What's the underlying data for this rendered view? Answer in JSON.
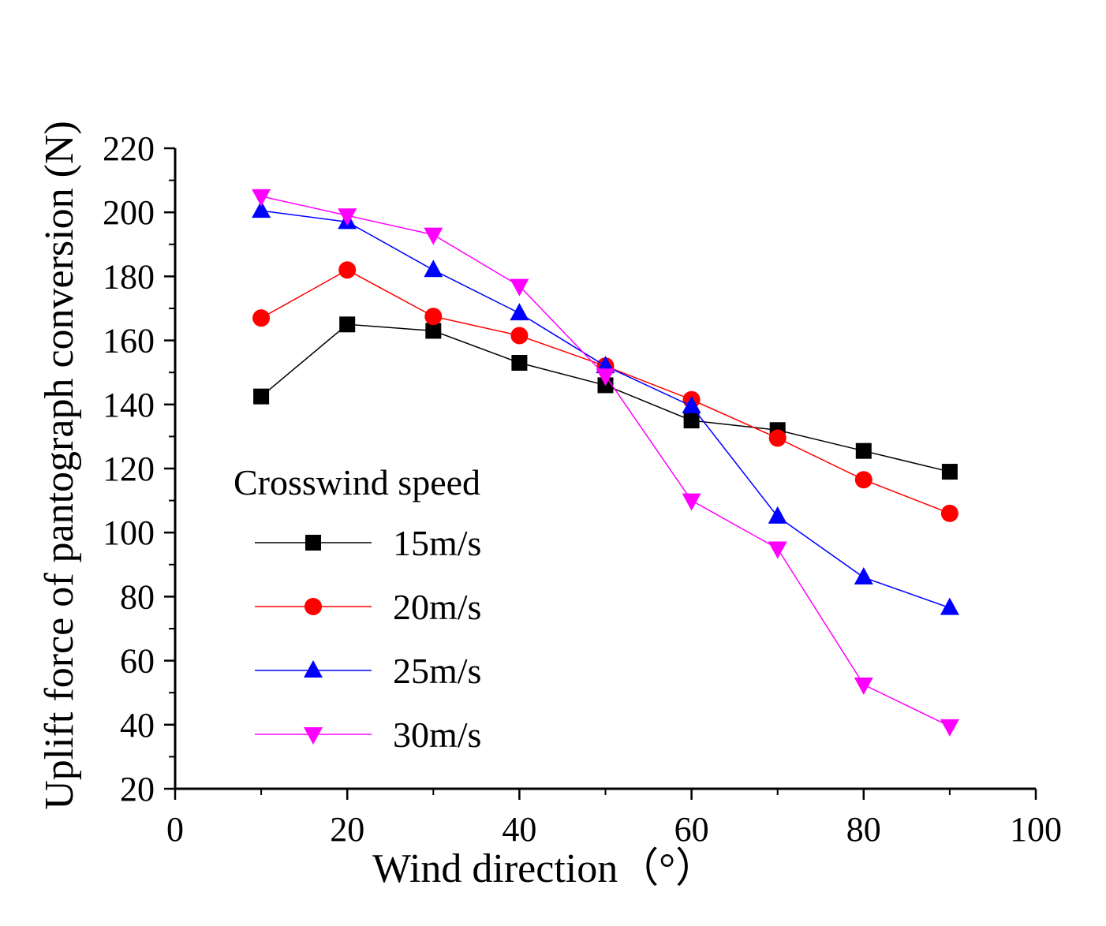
{
  "chart_data": {
    "type": "line",
    "title": "",
    "xlabel": "Wind direction（°）",
    "ylabel": "Uplift force of pantograph conversion (N)",
    "xlim": [
      0,
      100
    ],
    "ylim": [
      20,
      220
    ],
    "xticks": [
      0,
      20,
      40,
      60,
      80,
      100
    ],
    "yticks": [
      20,
      40,
      60,
      80,
      100,
      120,
      140,
      160,
      180,
      200,
      220
    ],
    "x": [
      10,
      20,
      30,
      40,
      50,
      60,
      70,
      80,
      90
    ],
    "legend_title": "Crosswind speed",
    "legend_position": "lower-left",
    "series": [
      {
        "name": "15m/s",
        "color": "#000000",
        "marker": "square",
        "values": [
          142.5,
          165,
          163,
          153,
          146,
          135,
          132,
          125.5,
          119
        ]
      },
      {
        "name": "20m/s",
        "color": "#ff0000",
        "marker": "circle",
        "values": [
          167,
          182,
          167.5,
          161.5,
          152,
          141.5,
          129.5,
          116.5,
          106
        ]
      },
      {
        "name": "25m/s",
        "color": "#0000ff",
        "marker": "triangle-up",
        "values": [
          200.5,
          197,
          182,
          168.5,
          152,
          139.5,
          105,
          86,
          76.5
        ]
      },
      {
        "name": "30m/s",
        "color": "#ff00ff",
        "marker": "triangle-down",
        "values": [
          205,
          199,
          193,
          177,
          149,
          110,
          95,
          52.5,
          39.5
        ]
      }
    ]
  }
}
